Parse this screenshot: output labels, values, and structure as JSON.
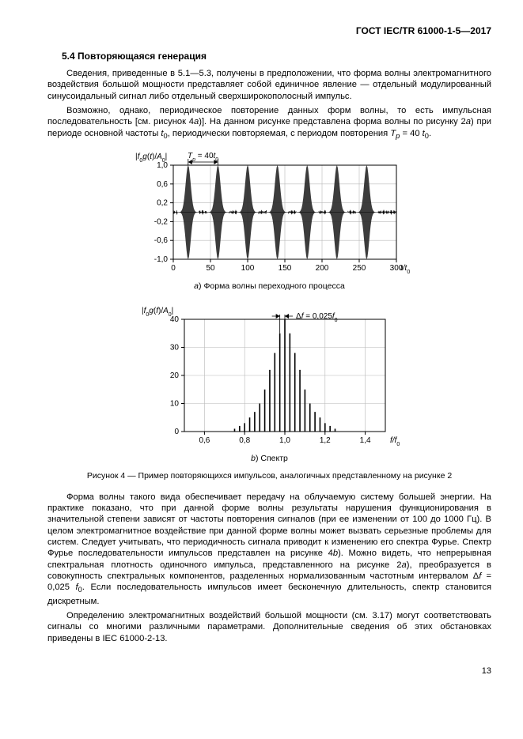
{
  "header": {
    "standard": "ГОСТ IEC/TR 61000-1-5—2017"
  },
  "section": {
    "number_title": "5.4  Повторяющаяся генерация"
  },
  "p1": "Сведения, приведенные в 5.1—5.3, получены в предположении, что форма волны электромагнитного воздействия большой мощности представляет собой единичное явление — отдельный модулированный синусоидальный сигнал либо отдельный сверхширокополосный импульс.",
  "p2a": "Возможно, однако, периодическое повторение данных форм волны, то есть импульсная последовательность [см. рисунок 4",
  "p2b": ")]. На данном рисунке представлена форма волны по рисунку 2",
  "p2c": ") при периоде основной частоты ",
  "p2d": ", периодически повторяемая, с периодом повторения ",
  "p2e": " = 40 ",
  "chartA": {
    "type": "line",
    "ylabel_html": "|f₀g(t)/A₀|",
    "xlabel": "t/t₀",
    "annotation": "Tₚ = 40t₀",
    "xlim": [
      0,
      300
    ],
    "ylim": [
      -1.0,
      1.0
    ],
    "xticks": [
      0,
      50,
      100,
      150,
      200,
      250,
      300
    ],
    "yticks": [
      -1.0,
      -0.6,
      -0.2,
      0.2,
      0.6,
      1.0
    ],
    "burst_centers": [
      20,
      60,
      100,
      140,
      180,
      220,
      260
    ],
    "burst_halfwidth": 15,
    "noise_amp": 0.05,
    "colors": {
      "bg": "#ffffff",
      "grid": "#b8b8b8",
      "axis": "#000",
      "line": "#000",
      "fill": "#2b2b2b"
    }
  },
  "captionA": "a) Форма волны переходного процесса",
  "chartB": {
    "type": "bar-spectrum",
    "ylabel_html": "|f₀g(f)/A₀|",
    "xlabel": "f/f₀",
    "annotation": "Δf = 0,025f₀",
    "xlim": [
      0.5,
      1.5
    ],
    "ylim": [
      0,
      40
    ],
    "xticks": [
      0.6,
      0.8,
      1.0,
      1.2,
      1.4
    ],
    "yticks": [
      0,
      10,
      20,
      30,
      40
    ],
    "peaks": [
      {
        "f": 0.75,
        "v": 1
      },
      {
        "f": 0.775,
        "v": 2
      },
      {
        "f": 0.8,
        "v": 3
      },
      {
        "f": 0.825,
        "v": 5
      },
      {
        "f": 0.85,
        "v": 7
      },
      {
        "f": 0.875,
        "v": 10
      },
      {
        "f": 0.9,
        "v": 15
      },
      {
        "f": 0.925,
        "v": 22
      },
      {
        "f": 0.95,
        "v": 28
      },
      {
        "f": 0.975,
        "v": 35
      },
      {
        "f": 1.0,
        "v": 40
      },
      {
        "f": 1.025,
        "v": 35
      },
      {
        "f": 1.05,
        "v": 28
      },
      {
        "f": 1.075,
        "v": 22
      },
      {
        "f": 1.1,
        "v": 15
      },
      {
        "f": 1.125,
        "v": 10
      },
      {
        "f": 1.15,
        "v": 7
      },
      {
        "f": 1.175,
        "v": 5
      },
      {
        "f": 1.2,
        "v": 3
      },
      {
        "f": 1.225,
        "v": 2
      },
      {
        "f": 1.25,
        "v": 1
      }
    ],
    "colors": {
      "bg": "#ffffff",
      "grid": "#b8b8b8",
      "axis": "#000",
      "line": "#000"
    }
  },
  "captionB": "b) Спектр",
  "figcaption": "Рисунок 4 — Пример повторяющихся импульсов, аналогичных представленному на рисунке 2",
  "p3a": "Форма волны такого вида обеспечивает передачу на облучаемую систему большей энергии. На практике показано, что при данной форме волны результаты нарушения функционирования в значительной степени зависят от частоты повторения сигналов (при ее изменении от 100 до 1000 Гц). В целом электромагнитное воздействие при данной форме волны может вызвать серьезные проблемы для систем. Следует учитывать, что периодичность сигнала приводит к изменению его спектра Фурье. Спектр Фурье последовательности импульсов представлен на рисунке 4",
  "p3b": "). Можно видеть, что непрерывная спектральная плотность одиночного импульса, представленного на рисунке 2",
  "p3c": "), преобразуется в совокупность спектральных компонентов, разделенных нормализованным частотным интервалом Δ",
  "p3d": " = 0,025 ",
  "p3e": ". Если последовательность импульсов имеет бесконечную длительность, спектр становится дискретным.",
  "p4": "Определению электромагнитных воздействий большой мощности (см. 3.17) могут соответствовать сигналы со многими различными параметрами. Дополнительные сведения об этих обстановках приведены в IEC 61000-2-13.",
  "page": "13"
}
